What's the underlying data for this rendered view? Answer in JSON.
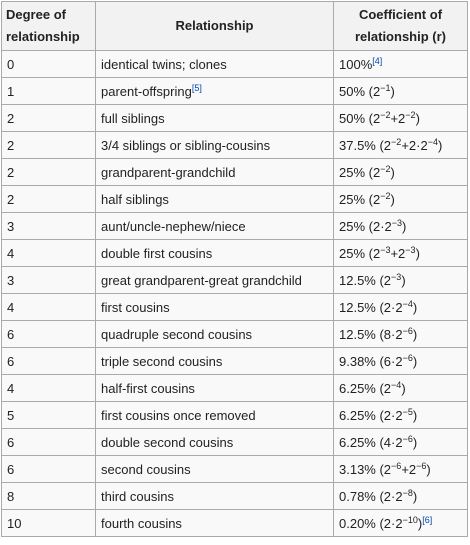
{
  "headers": {
    "degree_line1": "Degree of",
    "degree_line2": "relationship",
    "relationship": "Relationship",
    "coefficient_line1": "Coefficient of",
    "coefficient_line2": "relationship (r)"
  },
  "rows": [
    {
      "degree": "0",
      "relationship": "identical twins; clones",
      "rel_ref": "",
      "coef": [
        {
          "t": "100%"
        },
        {
          "t": "[4]",
          "ref": true
        }
      ]
    },
    {
      "degree": "1",
      "relationship": "parent-offspring",
      "rel_ref": "[5]",
      "coef": [
        {
          "t": "50% (2"
        },
        {
          "t": "−1",
          "sup": true
        },
        {
          "t": ")"
        }
      ]
    },
    {
      "degree": "2",
      "relationship": "full siblings",
      "rel_ref": "",
      "coef": [
        {
          "t": "50% (2"
        },
        {
          "t": "−2",
          "sup": true
        },
        {
          "t": "+2"
        },
        {
          "t": "−2",
          "sup": true
        },
        {
          "t": ")"
        }
      ]
    },
    {
      "degree": "2",
      "relationship": "3/4 siblings or sibling-cousins",
      "rel_ref": "",
      "coef": [
        {
          "t": "37.5% (2"
        },
        {
          "t": "−2",
          "sup": true
        },
        {
          "t": "+2·2"
        },
        {
          "t": "−4",
          "sup": true
        },
        {
          "t": ")"
        }
      ]
    },
    {
      "degree": "2",
      "relationship": "grandparent-grandchild",
      "rel_ref": "",
      "coef": [
        {
          "t": "25% (2"
        },
        {
          "t": "−2",
          "sup": true
        },
        {
          "t": ")"
        }
      ]
    },
    {
      "degree": "2",
      "relationship": "half siblings",
      "rel_ref": "",
      "coef": [
        {
          "t": "25% (2"
        },
        {
          "t": "−2",
          "sup": true
        },
        {
          "t": ")"
        }
      ]
    },
    {
      "degree": "3",
      "relationship": "aunt/uncle-nephew/niece",
      "rel_ref": "",
      "coef": [
        {
          "t": "25% (2·2"
        },
        {
          "t": "−3",
          "sup": true
        },
        {
          "t": ")"
        }
      ]
    },
    {
      "degree": "4",
      "relationship": "double first cousins",
      "rel_ref": "",
      "coef": [
        {
          "t": "25% (2"
        },
        {
          "t": "−3",
          "sup": true
        },
        {
          "t": "+2"
        },
        {
          "t": "−3",
          "sup": true
        },
        {
          "t": ")"
        }
      ]
    },
    {
      "degree": "3",
      "relationship": "great grandparent-great grandchild",
      "rel_ref": "",
      "coef": [
        {
          "t": "12.5% (2"
        },
        {
          "t": "−3",
          "sup": true
        },
        {
          "t": ")"
        }
      ]
    },
    {
      "degree": "4",
      "relationship": "first cousins",
      "rel_ref": "",
      "coef": [
        {
          "t": "12.5% (2·2"
        },
        {
          "t": "−4",
          "sup": true
        },
        {
          "t": ")"
        }
      ]
    },
    {
      "degree": "6",
      "relationship": "quadruple second cousins",
      "rel_ref": "",
      "coef": [
        {
          "t": "12.5% (8·2"
        },
        {
          "t": "−6",
          "sup": true
        },
        {
          "t": ")"
        }
      ]
    },
    {
      "degree": "6",
      "relationship": "triple second cousins",
      "rel_ref": "",
      "coef": [
        {
          "t": "9.38% (6·2"
        },
        {
          "t": "−6",
          "sup": true
        },
        {
          "t": ")"
        }
      ]
    },
    {
      "degree": "4",
      "relationship": "half-first cousins",
      "rel_ref": "",
      "coef": [
        {
          "t": "6.25% (2"
        },
        {
          "t": "−4",
          "sup": true
        },
        {
          "t": ")"
        }
      ]
    },
    {
      "degree": "5",
      "relationship": "first cousins once removed",
      "rel_ref": "",
      "coef": [
        {
          "t": "6.25% (2·2"
        },
        {
          "t": "−5",
          "sup": true
        },
        {
          "t": ")"
        }
      ]
    },
    {
      "degree": "6",
      "relationship": "double second cousins",
      "rel_ref": "",
      "coef": [
        {
          "t": "6.25% (4·2"
        },
        {
          "t": "−6",
          "sup": true
        },
        {
          "t": ")"
        }
      ]
    },
    {
      "degree": "6",
      "relationship": "second cousins",
      "rel_ref": "",
      "coef": [
        {
          "t": "3.13% (2"
        },
        {
          "t": "−6",
          "sup": true
        },
        {
          "t": "+2"
        },
        {
          "t": "−6",
          "sup": true
        },
        {
          "t": ")"
        }
      ]
    },
    {
      "degree": "8",
      "relationship": "third cousins",
      "rel_ref": "",
      "coef": [
        {
          "t": "0.78% (2·2"
        },
        {
          "t": "−8",
          "sup": true
        },
        {
          "t": ")"
        }
      ]
    },
    {
      "degree": "10",
      "relationship": "fourth cousins",
      "rel_ref": "",
      "coef": [
        {
          "t": "0.20% (2·2"
        },
        {
          "t": "−10",
          "sup": true
        },
        {
          "t": ")"
        },
        {
          "t": "[6]",
          "ref": true
        }
      ]
    }
  ]
}
